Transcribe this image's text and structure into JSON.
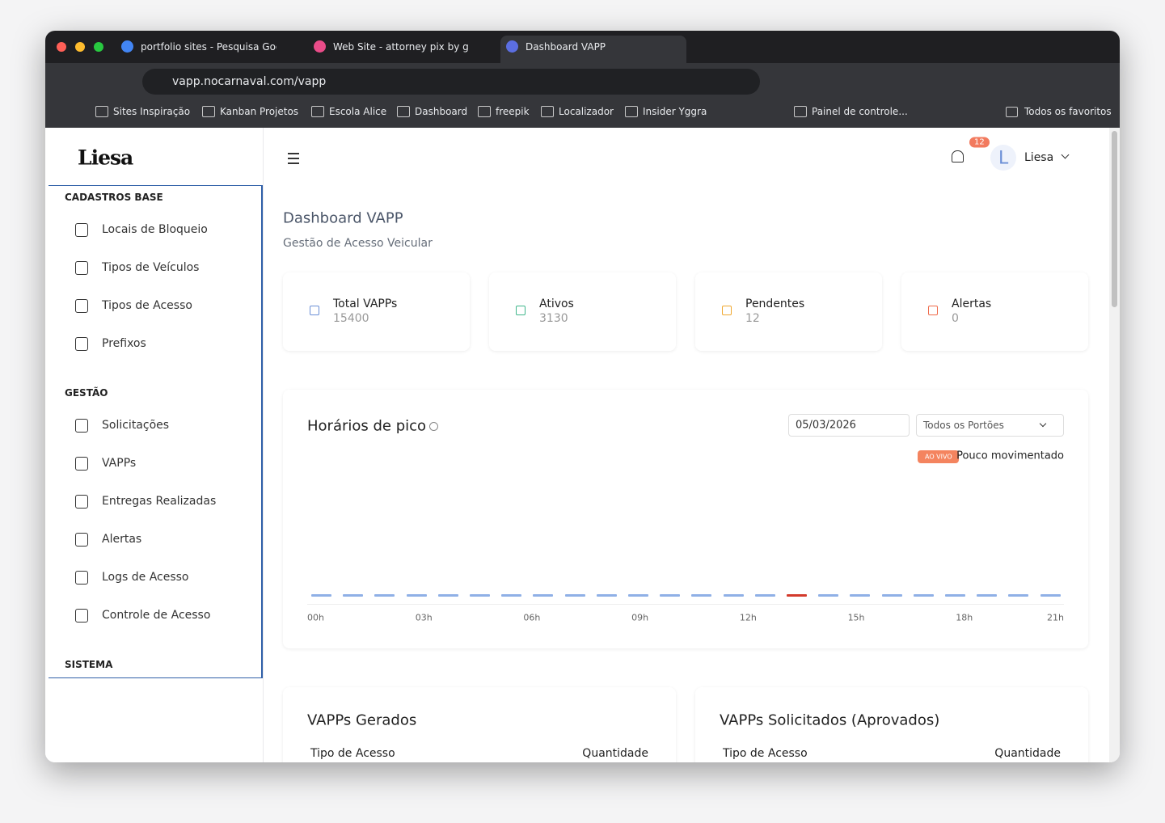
{
  "browser": {
    "tabs": [
      "portfolio sites - Pesquisa Goo",
      "Web Site - attorney pix by gal",
      "Dashboard VAPP"
    ],
    "address": "vapp.nocarnaval.com/vapp",
    "bookmarks": [
      "Sites Inspiração",
      "Kanban Projetos",
      "Escola Alice",
      "Dashboard",
      "freepik",
      "Localizador",
      "Insider Yggra",
      "Painel de controle..."
    ],
    "all_bookmarks": "Todos os favoritos"
  },
  "sidebar": {
    "logo": "Liesa",
    "sections": [
      {
        "title": "CADASTROS BASE",
        "items": [
          "Locais de Bloqueio",
          "Tipos de Veículos",
          "Tipos de Acesso",
          "Prefixos"
        ]
      },
      {
        "title": "GESTÃO",
        "items": [
          "Solicitações",
          "VAPPs",
          "Entregas Realizadas",
          "Alertas",
          "Logs de Acesso",
          "Controle de Acesso"
        ]
      },
      {
        "title": "SISTEMA",
        "items": []
      }
    ]
  },
  "header": {
    "notifications": 12,
    "avatar": "L",
    "user": "Liesa"
  },
  "page": {
    "title": "Dashboard VAPP",
    "subtitle": "Gestão de Acesso Veicular"
  },
  "stats": [
    {
      "label": "Total VAPPs",
      "value": 15400,
      "color": "#6b8fd6"
    },
    {
      "label": "Ativos",
      "value": 3130,
      "color": "#3fb68b"
    },
    {
      "label": "Pendentes",
      "value": 12,
      "color": "#f0a830"
    },
    {
      "label": "Alertas",
      "value": 0,
      "color": "#ef6a4a"
    }
  ],
  "peak": {
    "title": "Horários de pico",
    "date": "05/03/2026",
    "gate": "Todos os Portões",
    "badge": "AO VIVO",
    "status": "Pouco movimentado",
    "chart_data": {
      "type": "bar",
      "x_labels": [
        "00h",
        "03h",
        "06h",
        "09h",
        "12h",
        "15h",
        "18h",
        "21h"
      ],
      "values": [
        0,
        0,
        0,
        0,
        0,
        0,
        0,
        0,
        0,
        0,
        0,
        0,
        0,
        0,
        0,
        0,
        0,
        0,
        0,
        0,
        0,
        0,
        0,
        0
      ],
      "color": "#8fb0e6",
      "highlight_color": "#d33a2c",
      "highlight_index": 15
    }
  },
  "tables": [
    {
      "title": "VAPPs Gerados",
      "columns": [
        "Tipo de Acesso",
        "Quantidade"
      ]
    },
    {
      "title": "VAPPs Solicitados (Aprovados)",
      "columns": [
        "Tipo de Acesso",
        "Quantidade"
      ]
    }
  ]
}
